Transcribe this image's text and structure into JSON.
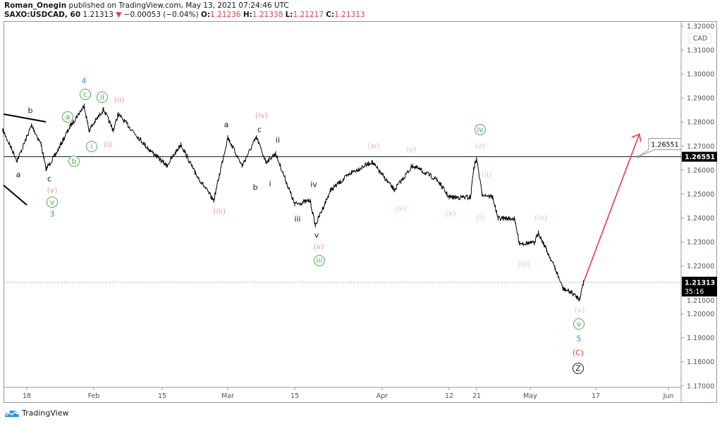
{
  "header": {
    "author": "Roman_Onegin",
    "published_text": "published on TradingView.com, May 13, 2021 07:24:46 UTC",
    "symbol": "SAXO:USDCAD, 60",
    "last": "1.21313",
    "change": "−0.00053 (−0.04%)",
    "o_label": "O:",
    "o": "1.21236",
    "h_label": "H:",
    "h": "1.21338",
    "l_label": "L:",
    "l": "1.21217",
    "c_label": "C:",
    "c": "1.21313"
  },
  "colors": {
    "down": "#f23645",
    "green": "#4caf50",
    "blue": "#2196f3",
    "salmon": "#ef9a9a",
    "pink": "#f8bbd0",
    "price": "#000000",
    "projection": "#f23645"
  },
  "chart_data": {
    "type": "line",
    "title": "",
    "xlabel": "",
    "ylabel": "",
    "currency": "CAD",
    "ylim": [
      1.17,
      1.32
    ],
    "y_ticks": [
      "1.17000",
      "1.18000",
      "1.19000",
      "1.20000",
      "1.21000",
      "1.22000",
      "1.23000",
      "1.24000",
      "1.25000",
      "1.26000",
      "1.27000",
      "1.28000",
      "1.29000",
      "1.30000",
      "1.31000",
      "1.32000"
    ],
    "x_ticks": [
      "18",
      "Feb",
      "15",
      "Mar",
      "15",
      "Apr",
      "12",
      "21",
      "May",
      "17",
      "Jun"
    ],
    "grid": false,
    "series": [
      {
        "x": [
          "2021-01-13",
          "2021-01-16",
          "2021-01-19",
          "2021-01-21",
          "2021-01-22",
          "2021-01-24",
          "2021-01-27",
          "2021-01-30",
          "2021-01-31",
          "2021-02-03",
          "2021-02-05",
          "2021-02-06",
          "2021-02-12",
          "2021-02-16",
          "2021-02-19",
          "2021-02-22",
          "2021-02-26",
          "2021-03-01",
          "2021-03-04",
          "2021-03-07",
          "2021-03-09",
          "2021-03-11",
          "2021-03-15",
          "2021-03-18",
          "2021-03-19",
          "2021-03-22",
          "2021-03-26",
          "2021-03-30",
          "2021-04-03",
          "2021-04-06",
          "2021-04-10",
          "2021-04-12",
          "2021-04-19",
          "2021-04-20",
          "2021-04-21",
          "2021-04-22",
          "2021-04-24",
          "2021-04-25",
          "2021-04-28",
          "2021-04-29",
          "2021-05-02",
          "2021-05-03",
          "2021-05-05",
          "2021-05-07",
          "2021-05-09",
          "2021-05-11",
          "2021-05-13",
          "2021-05-14"
        ],
        "values": [
          1.2765,
          1.2639,
          1.2786,
          1.2707,
          1.2604,
          1.2663,
          1.278,
          1.2868,
          1.2765,
          1.2853,
          1.2765,
          1.2833,
          1.2692,
          1.2618,
          1.2707,
          1.2589,
          1.2472,
          1.2736,
          1.2618,
          1.2736,
          1.2633,
          1.2669,
          1.2457,
          1.2472,
          1.2369,
          1.2516,
          1.2589,
          1.2633,
          1.2516,
          1.2618,
          1.256,
          1.2486,
          1.2486,
          1.2604,
          1.2648,
          1.2501,
          1.2486,
          1.2398,
          1.2398,
          1.2295,
          1.2295,
          1.2339,
          1.2266,
          1.2193,
          1.2105,
          1.209,
          1.2061,
          1.21313
        ]
      }
    ],
    "horizontal_line": {
      "value": 1.26551,
      "label": "1.26551"
    },
    "last_price": {
      "value": 1.21313,
      "label": "1.21313",
      "countdown": "35:16"
    },
    "projection": {
      "from": [
        "2021-05-14",
        1.21313
      ],
      "to": [
        "2021-05-26",
        1.275
      ],
      "label": "1.26551"
    },
    "wave_labels": [
      {
        "text": "b",
        "style": "black"
      },
      {
        "text": "a",
        "style": "black"
      },
      {
        "text": "c",
        "style": "black"
      },
      {
        "text": "(v)",
        "style": "salmon"
      },
      {
        "text": "v",
        "style": "green-circle"
      },
      {
        "text": "3",
        "style": "blue"
      },
      {
        "text": "4",
        "style": "blue"
      },
      {
        "text": "c",
        "style": "green-circle"
      },
      {
        "text": "ii",
        "style": "green-circle"
      },
      {
        "text": "(ii)",
        "style": "salmon"
      },
      {
        "text": "a",
        "style": "green-circle"
      },
      {
        "text": "i",
        "style": "green-circle"
      },
      {
        "text": "(i)",
        "style": "salmon"
      },
      {
        "text": "b",
        "style": "green-circle"
      },
      {
        "text": "a",
        "style": "black"
      },
      {
        "text": "(iv)",
        "style": "salmon"
      },
      {
        "text": "c",
        "style": "black"
      },
      {
        "text": "ii",
        "style": "black"
      },
      {
        "text": "b",
        "style": "black"
      },
      {
        "text": "i",
        "style": "black"
      },
      {
        "text": "(iii)",
        "style": "salmon"
      },
      {
        "text": "iv",
        "style": "black"
      },
      {
        "text": "iii",
        "style": "black"
      },
      {
        "text": "v",
        "style": "black"
      },
      {
        "text": "(v)",
        "style": "salmon"
      },
      {
        "text": "iii",
        "style": "green-circle"
      },
      {
        "text": "(w)",
        "style": "pink"
      },
      {
        "text": "(y)",
        "style": "pink"
      },
      {
        "text": "(x)",
        "style": "pink"
      },
      {
        "text": "(x)",
        "style": "pink"
      },
      {
        "text": "iv",
        "style": "green-circle"
      },
      {
        "text": "(z)",
        "style": "pink"
      },
      {
        "text": "(ii)",
        "style": "pink"
      },
      {
        "text": "(i)",
        "style": "pink"
      },
      {
        "text": "(iv)",
        "style": "pink"
      },
      {
        "text": "(iii)",
        "style": "pink"
      },
      {
        "text": "(v)",
        "style": "pink"
      },
      {
        "text": "v",
        "style": "green-circle"
      },
      {
        "text": "5",
        "style": "blue"
      },
      {
        "text": "(C)",
        "style": "red"
      },
      {
        "text": "Z",
        "style": "black-circle"
      }
    ]
  },
  "footer": {
    "brand": "TradingView",
    "logo_icon": "tradingview-cloud-icon"
  }
}
